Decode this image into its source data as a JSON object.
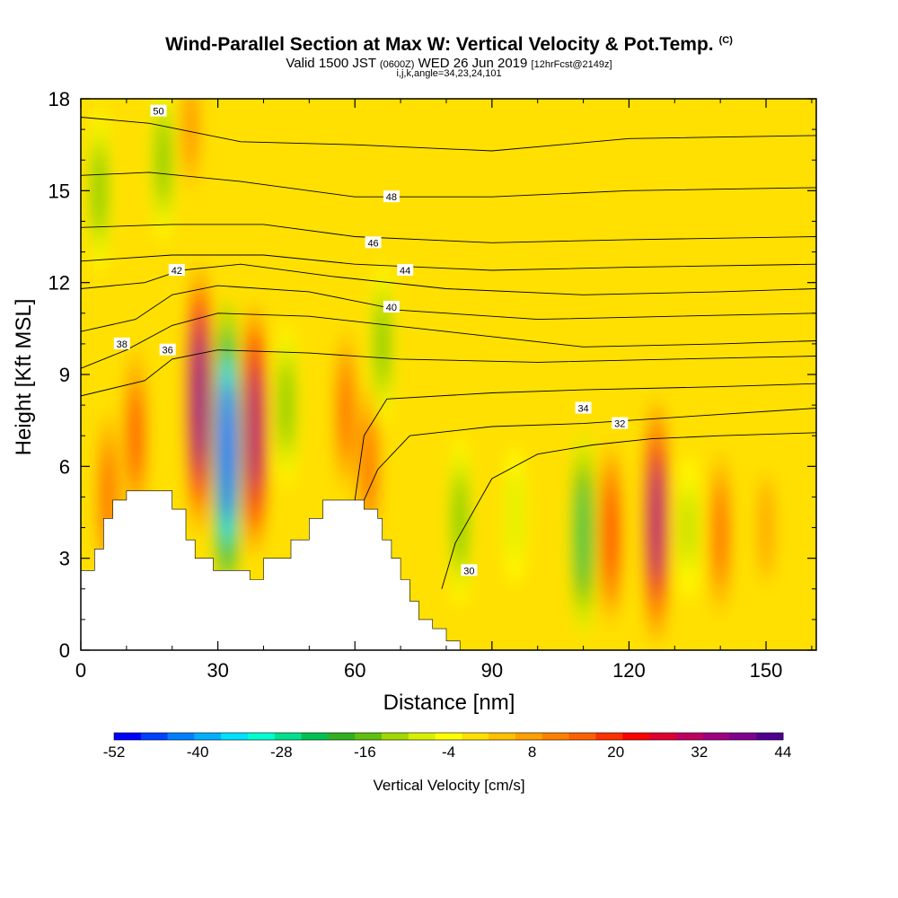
{
  "header": {
    "title": "Wind-Parallel Section at Max W: Vertical Velocity & Pot.Temp.",
    "copyright": "(C)",
    "valid_prefix": "Valid 1500 JST",
    "valid_utc": "(0600Z)",
    "valid_date": "WED 26 Jun 2019",
    "forecast": "[12hrFcst@2149z]",
    "params": "i,j,k,angle=34,23,24,101"
  },
  "chart_data": {
    "type": "heatmap",
    "xlabel": "Distance [nm]",
    "ylabel": "Height [Kft MSL]",
    "xlim": [
      0,
      161
    ],
    "ylim": [
      0,
      18
    ],
    "x_ticks": [
      "0",
      "30",
      "60",
      "90",
      "120",
      "150"
    ],
    "y_ticks": [
      "0",
      "3",
      "6",
      "9",
      "12",
      "15",
      "18"
    ],
    "colorbar": {
      "title": "Vertical Velocity [cm/s]",
      "labels": [
        "-52",
        "-40",
        "-28",
        "-16",
        "-4",
        "8",
        "20",
        "32",
        "44"
      ],
      "colors": [
        "#0000ff",
        "#0040ff",
        "#0080ff",
        "#00b0ff",
        "#00e0ff",
        "#00ffd0",
        "#00e090",
        "#00c050",
        "#30b020",
        "#60c010",
        "#a0d800",
        "#d8f000",
        "#ffff00",
        "#ffe000",
        "#ffc000",
        "#ffa000",
        "#ff8000",
        "#ff6000",
        "#ff3000",
        "#ff0000",
        "#e00030",
        "#c00060",
        "#a00080",
        "#800090",
        "#500090"
      ]
    },
    "background_velocity_cm_s": -1,
    "velocity_features": [
      {
        "x": 26,
        "y": 8.2,
        "value": 40
      },
      {
        "x": 32,
        "y": 6.5,
        "value": -48
      },
      {
        "x": 38,
        "y": 7.2,
        "value": 36
      },
      {
        "x": 45,
        "y": 8.0,
        "value": -14
      },
      {
        "x": 58,
        "y": 7.8,
        "value": 14
      },
      {
        "x": 66,
        "y": 10.0,
        "value": -14
      },
      {
        "x": 63,
        "y": 6.0,
        "value": 14
      },
      {
        "x": 83,
        "y": 4.2,
        "value": -16
      },
      {
        "x": 95,
        "y": 4.4,
        "value": -8
      },
      {
        "x": 110,
        "y": 3.8,
        "value": -24
      },
      {
        "x": 116,
        "y": 3.8,
        "value": 20
      },
      {
        "x": 126,
        "y": 4.2,
        "value": 34
      },
      {
        "x": 133,
        "y": 4.0,
        "value": -10
      },
      {
        "x": 140,
        "y": 3.8,
        "value": 14
      },
      {
        "x": 6,
        "y": 5.0,
        "value": 16
      },
      {
        "x": 12,
        "y": 7.0,
        "value": 18
      },
      {
        "x": 4,
        "y": 15.0,
        "value": -14
      },
      {
        "x": 18,
        "y": 16.0,
        "value": -14
      },
      {
        "x": 24,
        "y": 17.0,
        "value": 10
      },
      {
        "x": 150,
        "y": 4.0,
        "value": 8
      }
    ],
    "terrain_profile": [
      [
        0,
        2.6
      ],
      [
        3,
        2.6
      ],
      [
        3,
        3.3
      ],
      [
        5,
        3.3
      ],
      [
        5,
        4.3
      ],
      [
        7,
        4.3
      ],
      [
        7,
        4.9
      ],
      [
        10,
        4.9
      ],
      [
        10,
        5.2
      ],
      [
        20,
        5.2
      ],
      [
        20,
        4.6
      ],
      [
        23,
        4.6
      ],
      [
        23,
        3.6
      ],
      [
        25,
        3.6
      ],
      [
        25,
        3.0
      ],
      [
        29,
        3.0
      ],
      [
        29,
        2.6
      ],
      [
        37,
        2.6
      ],
      [
        37,
        2.3
      ],
      [
        40,
        2.3
      ],
      [
        40,
        3.0
      ],
      [
        46,
        3.0
      ],
      [
        46,
        3.6
      ],
      [
        50,
        3.6
      ],
      [
        50,
        4.3
      ],
      [
        53,
        4.3
      ],
      [
        53,
        4.9
      ],
      [
        62,
        4.9
      ],
      [
        62,
        4.6
      ],
      [
        65,
        4.6
      ],
      [
        65,
        4.3
      ],
      [
        66,
        4.3
      ],
      [
        66,
        3.6
      ],
      [
        68,
        3.6
      ],
      [
        68,
        3.0
      ],
      [
        70,
        3.0
      ],
      [
        70,
        2.3
      ],
      [
        72,
        2.3
      ],
      [
        72,
        1.6
      ],
      [
        74,
        1.6
      ],
      [
        74,
        1.0
      ],
      [
        77,
        1.0
      ],
      [
        77,
        0.7
      ],
      [
        80,
        0.7
      ],
      [
        80,
        0.3
      ],
      [
        83,
        0.3
      ],
      [
        83,
        0
      ]
    ],
    "theta_contours": [
      {
        "label": "30",
        "points": [
          [
            79,
            2.0
          ],
          [
            82,
            3.5
          ],
          [
            90,
            5.6
          ],
          [
            100,
            6.4
          ],
          [
            112,
            6.7
          ],
          [
            125,
            6.9
          ],
          [
            140,
            7.0
          ],
          [
            161,
            7.1
          ]
        ],
        "label_at": [
          85,
          2.6
        ]
      },
      {
        "label": "32",
        "points": [
          [
            62,
            4.9
          ],
          [
            65,
            5.9
          ],
          [
            72,
            7.0
          ],
          [
            90,
            7.3
          ],
          [
            110,
            7.4
          ],
          [
            130,
            7.6
          ],
          [
            161,
            7.9
          ]
        ],
        "label_at": [
          118,
          7.4
        ]
      },
      {
        "label": "34",
        "points": [
          [
            60,
            4.9
          ],
          [
            62,
            7.0
          ],
          [
            67,
            8.2
          ],
          [
            90,
            8.4
          ],
          [
            110,
            8.5
          ],
          [
            140,
            8.6
          ],
          [
            161,
            8.7
          ]
        ],
        "label_at": [
          110,
          7.9
        ]
      },
      {
        "label": "36",
        "points": [
          [
            0,
            8.3
          ],
          [
            14,
            8.8
          ],
          [
            20,
            9.5
          ],
          [
            30,
            9.8
          ],
          [
            50,
            9.7
          ],
          [
            70,
            9.5
          ],
          [
            100,
            9.4
          ],
          [
            130,
            9.5
          ],
          [
            161,
            9.6
          ]
        ],
        "label_at": [
          19,
          9.8
        ]
      },
      {
        "label": "38",
        "points": [
          [
            0,
            9.2
          ],
          [
            10,
            9.8
          ],
          [
            20,
            10.6
          ],
          [
            30,
            11.0
          ],
          [
            50,
            10.9
          ],
          [
            80,
            10.4
          ],
          [
            110,
            9.9
          ],
          [
            140,
            10.0
          ],
          [
            161,
            10.1
          ]
        ],
        "label_at": [
          9,
          10.0
        ]
      },
      {
        "label": "40",
        "points": [
          [
            0,
            10.4
          ],
          [
            12,
            10.8
          ],
          [
            20,
            11.6
          ],
          [
            30,
            11.9
          ],
          [
            50,
            11.7
          ],
          [
            70,
            11.1
          ],
          [
            100,
            10.8
          ],
          [
            130,
            10.9
          ],
          [
            161,
            11.0
          ]
        ],
        "label_at": [
          68,
          11.2
        ]
      },
      {
        "label": "42",
        "points": [
          [
            0,
            11.8
          ],
          [
            14,
            12.0
          ],
          [
            22,
            12.4
          ],
          [
            35,
            12.6
          ],
          [
            55,
            12.2
          ],
          [
            80,
            11.8
          ],
          [
            110,
            11.6
          ],
          [
            140,
            11.7
          ],
          [
            161,
            11.8
          ]
        ],
        "label_at": [
          21,
          12.4
        ]
      },
      {
        "label": "44",
        "points": [
          [
            0,
            12.7
          ],
          [
            20,
            12.9
          ],
          [
            40,
            12.9
          ],
          [
            60,
            12.6
          ],
          [
            90,
            12.4
          ],
          [
            120,
            12.5
          ],
          [
            161,
            12.6
          ]
        ],
        "label_at": [
          71,
          12.4
        ]
      },
      {
        "label": "46",
        "points": [
          [
            0,
            13.8
          ],
          [
            20,
            13.9
          ],
          [
            40,
            13.9
          ],
          [
            60,
            13.5
          ],
          [
            90,
            13.3
          ],
          [
            120,
            13.4
          ],
          [
            161,
            13.5
          ]
        ],
        "label_at": [
          64,
          13.3
        ]
      },
      {
        "label": "48",
        "points": [
          [
            0,
            15.5
          ],
          [
            15,
            15.6
          ],
          [
            35,
            15.3
          ],
          [
            60,
            14.8
          ],
          [
            90,
            14.8
          ],
          [
            120,
            15.0
          ],
          [
            161,
            15.1
          ]
        ],
        "label_at": [
          68,
          14.8
        ]
      },
      {
        "label": "50",
        "points": [
          [
            0,
            17.4
          ],
          [
            15,
            17.2
          ],
          [
            35,
            16.6
          ],
          [
            60,
            16.5
          ],
          [
            90,
            16.3
          ],
          [
            120,
            16.7
          ],
          [
            161,
            16.8
          ]
        ],
        "label_at": [
          17,
          17.6
        ]
      }
    ]
  }
}
